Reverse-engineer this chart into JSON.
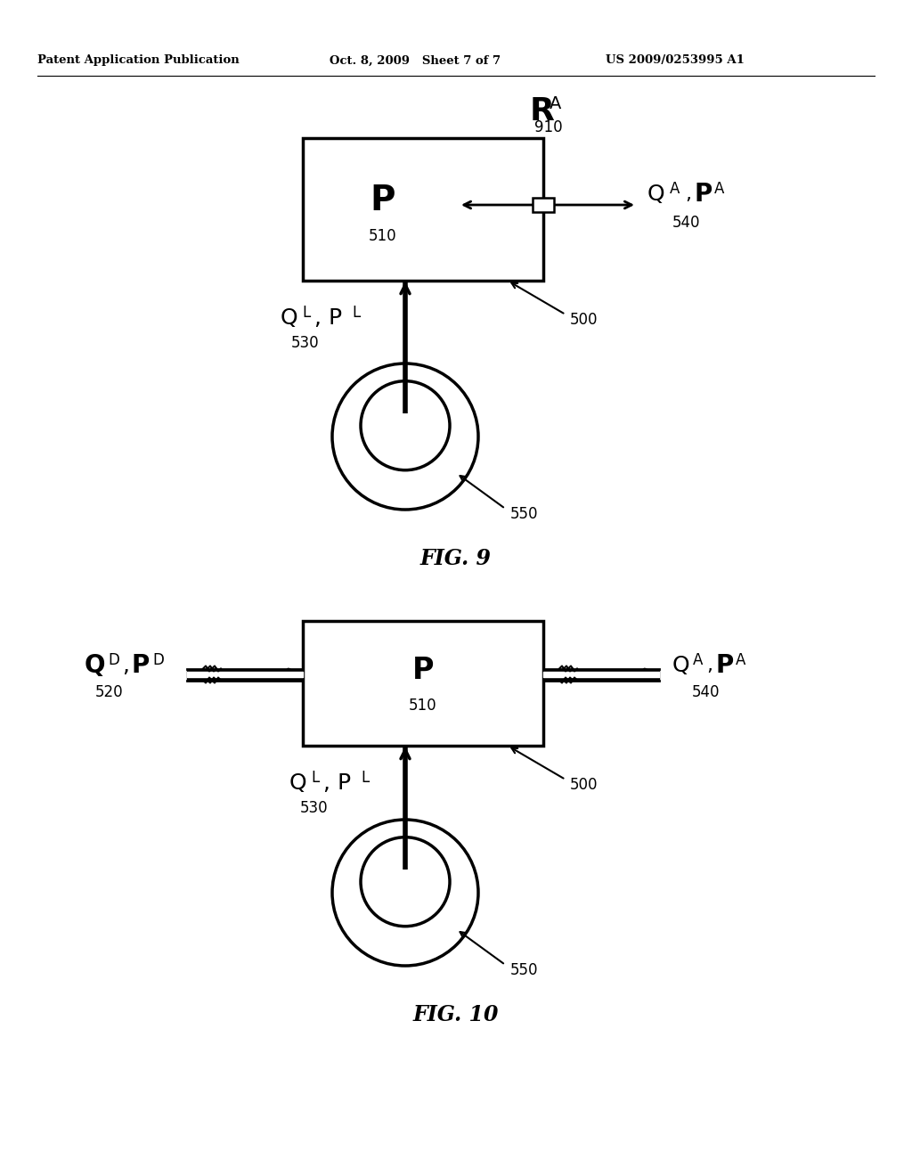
{
  "bg_color": "#ffffff",
  "header_left": "Patent Application Publication",
  "header_mid": "Oct. 8, 2009   Sheet 7 of 7",
  "header_right": "US 2009/0253995 A1",
  "fig9_caption": "FIG. 9",
  "fig10_caption": "FIG. 10"
}
